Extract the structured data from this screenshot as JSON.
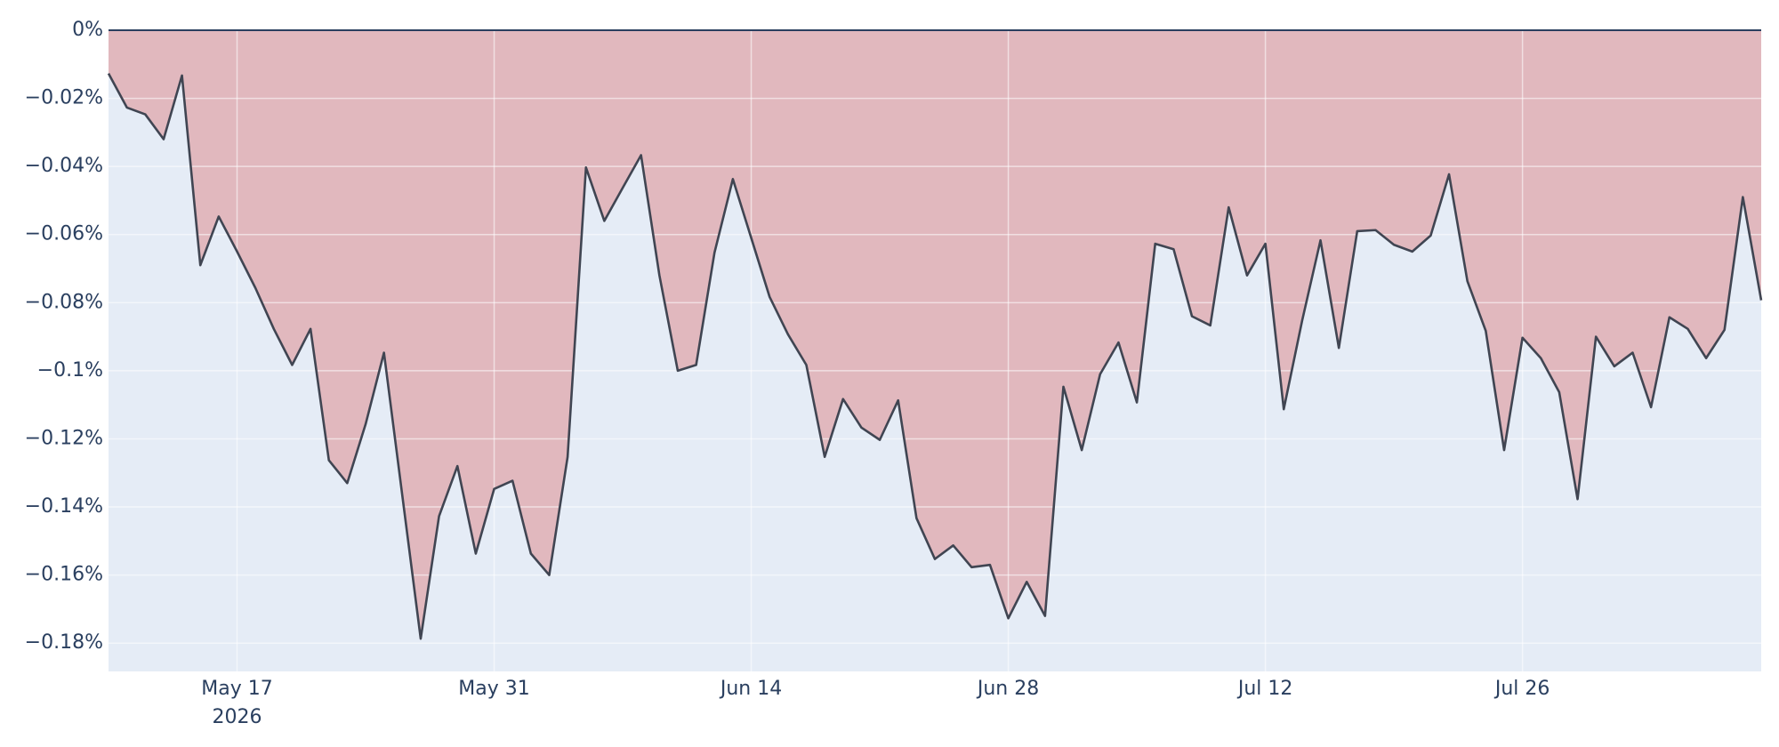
{
  "chart_data": {
    "type": "area",
    "x": [
      "2026-05-10",
      "2026-05-11",
      "2026-05-12",
      "2026-05-13",
      "2026-05-14",
      "2026-05-15",
      "2026-05-16",
      "2026-05-17",
      "2026-05-18",
      "2026-05-19",
      "2026-05-20",
      "2026-05-21",
      "2026-05-22",
      "2026-05-23",
      "2026-05-24",
      "2026-05-25",
      "2026-05-26",
      "2026-05-27",
      "2026-05-28",
      "2026-05-29",
      "2026-05-30",
      "2026-05-31",
      "2026-06-01",
      "2026-06-02",
      "2026-06-03",
      "2026-06-04",
      "2026-06-05",
      "2026-06-06",
      "2026-06-07",
      "2026-06-08",
      "2026-06-09",
      "2026-06-10",
      "2026-06-11",
      "2026-06-12",
      "2026-06-13",
      "2026-06-14",
      "2026-06-15",
      "2026-06-16",
      "2026-06-17",
      "2026-06-18",
      "2026-06-19",
      "2026-06-20",
      "2026-06-21",
      "2026-06-22",
      "2026-06-23",
      "2026-06-24",
      "2026-06-25",
      "2026-06-26",
      "2026-06-27",
      "2026-06-28",
      "2026-06-29",
      "2026-06-30",
      "2026-07-01",
      "2026-07-02",
      "2026-07-03",
      "2026-07-04",
      "2026-07-05",
      "2026-07-06",
      "2026-07-07",
      "2026-07-08",
      "2026-07-09",
      "2026-07-10",
      "2026-07-11",
      "2026-07-12",
      "2026-07-13",
      "2026-07-14",
      "2026-07-15",
      "2026-07-16",
      "2026-07-17",
      "2026-07-18",
      "2026-07-19",
      "2026-07-20",
      "2026-07-21",
      "2026-07-22",
      "2026-07-23",
      "2026-07-24",
      "2026-07-25",
      "2026-07-26",
      "2026-07-27",
      "2026-07-28",
      "2026-07-29",
      "2026-07-30",
      "2026-07-31",
      "2026-08-01",
      "2026-08-02",
      "2026-08-03",
      "2026-08-04",
      "2026-08-05",
      "2026-08-06",
      "2026-08-07",
      "2026-08-08"
    ],
    "values": [
      -0.0127,
      -0.0227,
      -0.0247,
      -0.032,
      -0.0133,
      -0.069,
      -0.0547,
      -0.065,
      -0.0757,
      -0.0877,
      -0.0983,
      -0.0877,
      -0.1263,
      -0.133,
      -0.1157,
      -0.0947,
      -0.1367,
      -0.1787,
      -0.1427,
      -0.128,
      -0.1537,
      -0.1347,
      -0.1323,
      -0.1537,
      -0.16,
      -0.1253,
      -0.0403,
      -0.056,
      -0.0463,
      -0.0367,
      -0.072,
      -0.1,
      -0.0983,
      -0.0653,
      -0.0437,
      -0.061,
      -0.0783,
      -0.0893,
      -0.0983,
      -0.1253,
      -0.1083,
      -0.1167,
      -0.1203,
      -0.1087,
      -0.1433,
      -0.1553,
      -0.1513,
      -0.1577,
      -0.157,
      -0.1727,
      -0.162,
      -0.172,
      -0.1047,
      -0.1233,
      -0.101,
      -0.0917,
      -0.1093,
      -0.0627,
      -0.0643,
      -0.084,
      -0.0867,
      -0.052,
      -0.072,
      -0.0627,
      -0.1113,
      -0.0853,
      -0.0617,
      -0.0933,
      -0.059,
      -0.0587,
      -0.063,
      -0.065,
      -0.0603,
      -0.0423,
      -0.0737,
      -0.0883,
      -0.1233,
      -0.0903,
      -0.0963,
      -0.1063,
      -0.1377,
      -0.09,
      -0.0987,
      -0.0947,
      -0.1107,
      -0.0843,
      -0.0877,
      -0.0963,
      -0.088,
      -0.049,
      -0.0793
    ],
    "color": "#404552",
    "fill_color": "#e1b8be",
    "plot_background": "#e5ecf6",
    "grid": true,
    "xlim": [
      "2026-05-10",
      "2026-08-08"
    ],
    "xticks": [
      {
        "value": "2026-05-17",
        "label": "May 17\n2026"
      },
      {
        "value": "2026-05-31",
        "label": "May 31"
      },
      {
        "value": "2026-06-14",
        "label": "Jun 14"
      },
      {
        "value": "2026-06-28",
        "label": "Jun 28"
      },
      {
        "value": "2026-07-12",
        "label": "Jul 12"
      },
      {
        "value": "2026-07-26",
        "label": "Jul 26"
      }
    ],
    "ylim": [
      -0.1883,
      0
    ],
    "yticks": [
      {
        "value": 0,
        "label": "0%"
      },
      {
        "value": -0.02,
        "label": "−0.02%"
      },
      {
        "value": -0.04,
        "label": "−0.04%"
      },
      {
        "value": -0.06,
        "label": "−0.06%"
      },
      {
        "value": -0.08,
        "label": "−0.08%"
      },
      {
        "value": -0.1,
        "label": "−0.1%"
      },
      {
        "value": -0.12,
        "label": "−0.12%"
      },
      {
        "value": -0.14,
        "label": "−0.14%"
      },
      {
        "value": -0.16,
        "label": "−0.16%"
      },
      {
        "value": -0.18,
        "label": "−0.18%"
      }
    ]
  }
}
